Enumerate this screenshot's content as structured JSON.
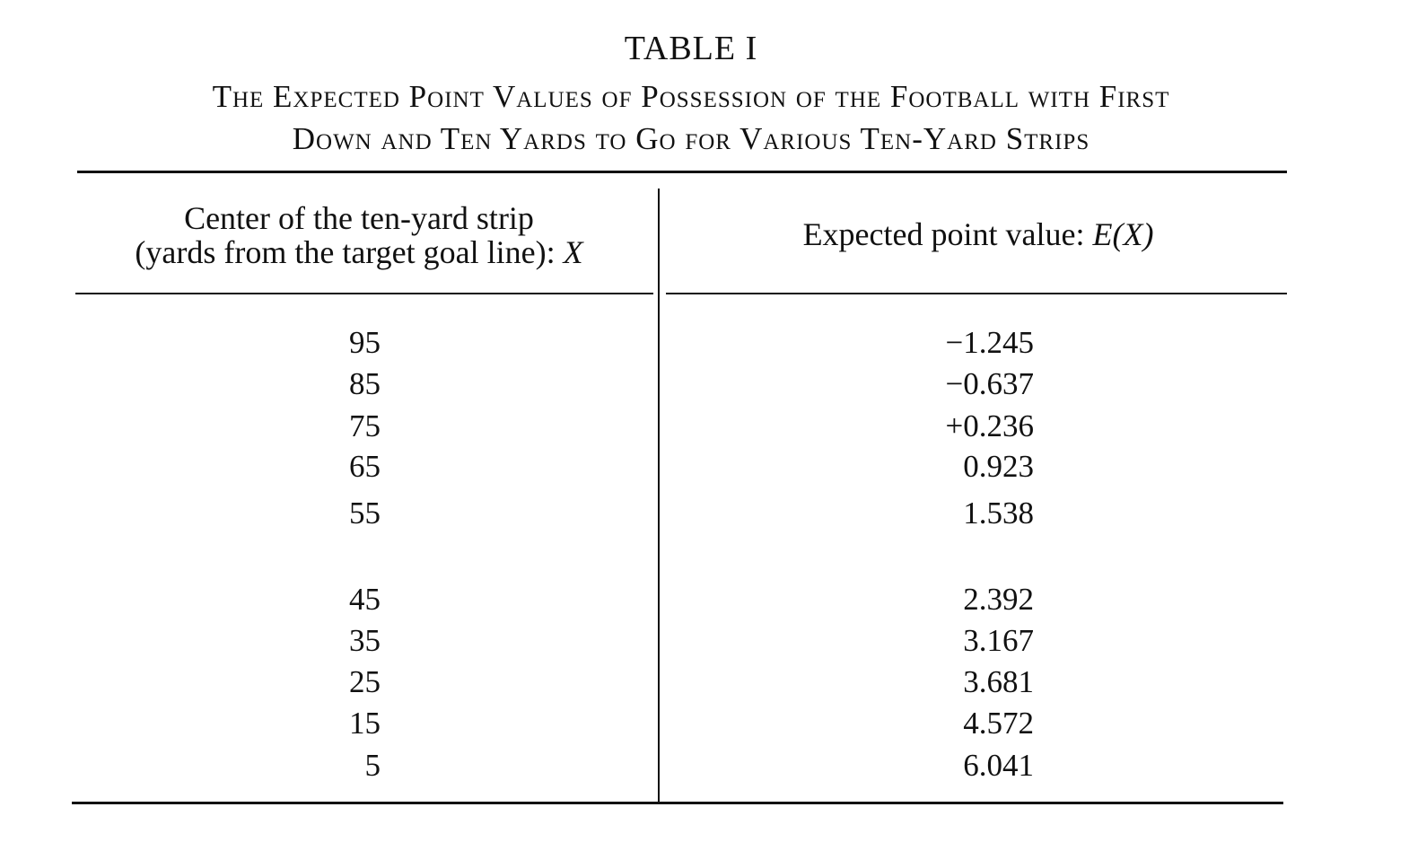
{
  "table": {
    "label": "TABLE I",
    "caption_line1": "The Expected Point Values of Possession of the Football with First",
    "caption_line2": "Down and Ten Yards to Go for Various Ten-Yard Strips",
    "col_x_header_line1": "Center of the ten-yard strip",
    "col_x_header_line2": "(yards from the target goal line): ",
    "col_x_header_var": "X",
    "col_e_header": "Expected point value: ",
    "col_e_header_var": "E(X)",
    "rows": [
      {
        "x": "95",
        "e": "−1.245"
      },
      {
        "x": "85",
        "e": "−0.637"
      },
      {
        "x": "75",
        "e": "+0.236"
      },
      {
        "x": "65",
        "e": "0.923"
      },
      {
        "x": "55",
        "e": "1.538"
      },
      {
        "x": "45",
        "e": "2.392"
      },
      {
        "x": "35",
        "e": "3.167"
      },
      {
        "x": "25",
        "e": "3.681"
      },
      {
        "x": "15",
        "e": "4.572"
      },
      {
        "x": "5",
        "e": "6.041"
      }
    ]
  }
}
